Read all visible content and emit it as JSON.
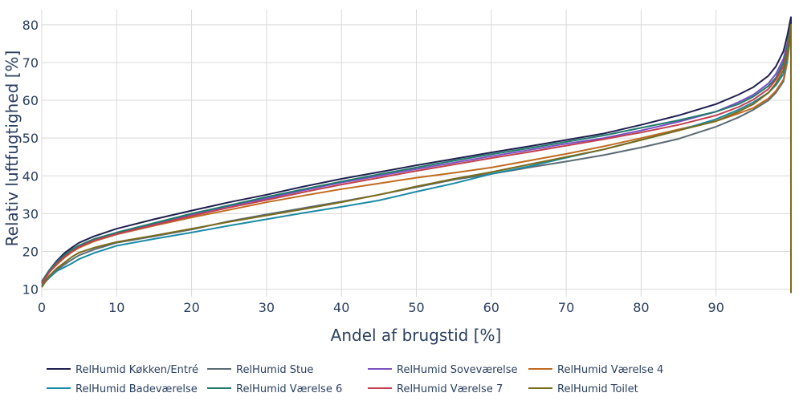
{
  "chart_data": {
    "type": "line",
    "xlabel": "Andel af brugstid [%]",
    "ylabel": "Relativ luftfugtighed [%]",
    "xlim": [
      0,
      100
    ],
    "ylim": [
      8,
      84
    ],
    "xticks": [
      0,
      10,
      20,
      30,
      40,
      50,
      60,
      70,
      80,
      90
    ],
    "yticks": [
      10,
      20,
      30,
      40,
      50,
      60,
      70,
      80
    ],
    "grid": true,
    "legend_position": "bottom",
    "series": [
      {
        "name": "RelHumid Køkken/Entré",
        "color": "#1f1f4f",
        "points": [
          [
            0,
            12
          ],
          [
            1,
            15
          ],
          [
            2,
            17.5
          ],
          [
            3,
            19.5
          ],
          [
            4,
            21
          ],
          [
            5,
            22.3
          ],
          [
            7,
            24
          ],
          [
            10,
            26
          ],
          [
            15,
            28.5
          ],
          [
            20,
            30.8
          ],
          [
            25,
            33
          ],
          [
            30,
            35
          ],
          [
            35,
            37.2
          ],
          [
            40,
            39.2
          ],
          [
            45,
            41
          ],
          [
            50,
            42.8
          ],
          [
            55,
            44.5
          ],
          [
            60,
            46.2
          ],
          [
            65,
            47.8
          ],
          [
            70,
            49.5
          ],
          [
            75,
            51.2
          ],
          [
            80,
            53.5
          ],
          [
            85,
            56
          ],
          [
            90,
            59
          ],
          [
            93,
            61.5
          ],
          [
            95,
            63.5
          ],
          [
            97,
            66.5
          ],
          [
            98,
            69
          ],
          [
            99,
            73
          ],
          [
            99.5,
            77
          ],
          [
            100,
            82
          ],
          [
            100,
            9
          ]
        ]
      },
      {
        "name": "RelHumid Stue",
        "color": "#5a6a72",
        "points": [
          [
            0,
            11
          ],
          [
            1,
            13.5
          ],
          [
            2,
            15
          ],
          [
            3,
            16.5
          ],
          [
            4,
            17.8
          ],
          [
            5,
            19
          ],
          [
            7,
            20.5
          ],
          [
            10,
            22.3
          ],
          [
            15,
            24
          ],
          [
            20,
            25.8
          ],
          [
            25,
            28
          ],
          [
            30,
            29.8
          ],
          [
            35,
            31.5
          ],
          [
            40,
            33.2
          ],
          [
            45,
            35
          ],
          [
            50,
            37
          ],
          [
            55,
            39
          ],
          [
            60,
            40.5
          ],
          [
            65,
            42.2
          ],
          [
            70,
            43.8
          ],
          [
            75,
            45.5
          ],
          [
            80,
            47.5
          ],
          [
            85,
            49.8
          ],
          [
            90,
            53
          ],
          [
            93,
            55.5
          ],
          [
            95,
            57.5
          ],
          [
            97,
            60
          ],
          [
            98,
            62
          ],
          [
            99,
            65
          ],
          [
            99.5,
            70
          ],
          [
            100,
            78
          ],
          [
            100,
            9
          ]
        ]
      },
      {
        "name": "RelHumid Soveværelse",
        "color": "#7b4fc4",
        "points": [
          [
            0,
            11.5
          ],
          [
            1,
            14.5
          ],
          [
            2,
            16.8
          ],
          [
            3,
            18.7
          ],
          [
            4,
            20.2
          ],
          [
            5,
            21.3
          ],
          [
            7,
            23
          ],
          [
            10,
            24.8
          ],
          [
            15,
            27.3
          ],
          [
            20,
            29.8
          ],
          [
            25,
            32
          ],
          [
            30,
            34
          ],
          [
            35,
            36.2
          ],
          [
            40,
            38.2
          ],
          [
            45,
            40
          ],
          [
            50,
            41.8
          ],
          [
            55,
            43.5
          ],
          [
            60,
            45.2
          ],
          [
            65,
            46.8
          ],
          [
            70,
            48.5
          ],
          [
            75,
            50
          ],
          [
            80,
            52
          ],
          [
            85,
            54.3
          ],
          [
            90,
            57
          ],
          [
            93,
            59.5
          ],
          [
            95,
            61.5
          ],
          [
            97,
            64.5
          ],
          [
            98,
            67
          ],
          [
            99,
            71
          ],
          [
            99.5,
            75
          ],
          [
            100,
            80
          ],
          [
            100,
            9
          ]
        ]
      },
      {
        "name": "RelHumid Værelse 4",
        "color": "#c06a1f",
        "points": [
          [
            0,
            11.5
          ],
          [
            1,
            14.5
          ],
          [
            2,
            16.5
          ],
          [
            3,
            18.3
          ],
          [
            4,
            19.8
          ],
          [
            5,
            21
          ],
          [
            7,
            22.7
          ],
          [
            10,
            24.5
          ],
          [
            15,
            26.8
          ],
          [
            20,
            29
          ],
          [
            25,
            31
          ],
          [
            30,
            33
          ],
          [
            35,
            34.8
          ],
          [
            40,
            36.5
          ],
          [
            45,
            38
          ],
          [
            50,
            39.5
          ],
          [
            55,
            40.8
          ],
          [
            60,
            42.2
          ],
          [
            65,
            44
          ],
          [
            70,
            45.8
          ],
          [
            75,
            47.8
          ],
          [
            80,
            50
          ],
          [
            85,
            52.3
          ],
          [
            90,
            54.5
          ],
          [
            93,
            56.5
          ],
          [
            95,
            58
          ],
          [
            97,
            60.5
          ],
          [
            98,
            62.5
          ],
          [
            99,
            65.5
          ],
          [
            99.5,
            70
          ],
          [
            100,
            79
          ],
          [
            100,
            9
          ]
        ]
      },
      {
        "name": "RelHumid Badeværelse",
        "color": "#1b8aa5",
        "points": [
          [
            0,
            11
          ],
          [
            1,
            13
          ],
          [
            2,
            14.8
          ],
          [
            3,
            15.8
          ],
          [
            4,
            16.8
          ],
          [
            5,
            18
          ],
          [
            7,
            19.6
          ],
          [
            10,
            21.5
          ],
          [
            15,
            23.3
          ],
          [
            20,
            25
          ],
          [
            25,
            26.8
          ],
          [
            30,
            28.5
          ],
          [
            35,
            30.2
          ],
          [
            40,
            31.8
          ],
          [
            45,
            33.5
          ],
          [
            50,
            35.8
          ],
          [
            55,
            38
          ],
          [
            60,
            40.5
          ],
          [
            65,
            42.5
          ],
          [
            70,
            44.8
          ],
          [
            75,
            47
          ],
          [
            80,
            49.5
          ],
          [
            85,
            52
          ],
          [
            90,
            55
          ],
          [
            93,
            57.5
          ],
          [
            95,
            59.5
          ],
          [
            97,
            62
          ],
          [
            98,
            64
          ],
          [
            99,
            67
          ],
          [
            99.5,
            71
          ],
          [
            100,
            79
          ],
          [
            100,
            9
          ]
        ]
      },
      {
        "name": "RelHumid Værelse 6",
        "color": "#1f7a6c",
        "points": [
          [
            0,
            12
          ],
          [
            1,
            15
          ],
          [
            2,
            17.2
          ],
          [
            3,
            19
          ],
          [
            4,
            20.5
          ],
          [
            5,
            21.6
          ],
          [
            7,
            23.3
          ],
          [
            10,
            25
          ],
          [
            15,
            27.5
          ],
          [
            20,
            30
          ],
          [
            25,
            32.2
          ],
          [
            30,
            34.4
          ],
          [
            35,
            36.5
          ],
          [
            40,
            38.5
          ],
          [
            45,
            40.4
          ],
          [
            50,
            42.2
          ],
          [
            55,
            44
          ],
          [
            60,
            45.7
          ],
          [
            65,
            47.3
          ],
          [
            70,
            49
          ],
          [
            75,
            50.7
          ],
          [
            80,
            52.7
          ],
          [
            85,
            54.7
          ],
          [
            90,
            57
          ],
          [
            93,
            59
          ],
          [
            95,
            61
          ],
          [
            97,
            63.8
          ],
          [
            98,
            66
          ],
          [
            99,
            70
          ],
          [
            99.5,
            74
          ],
          [
            100,
            80
          ],
          [
            100,
            9
          ]
        ]
      },
      {
        "name": "RelHumid Værelse 7",
        "color": "#c04050",
        "points": [
          [
            0,
            11.5
          ],
          [
            1,
            14.5
          ],
          [
            2,
            16.7
          ],
          [
            3,
            18.5
          ],
          [
            4,
            20
          ],
          [
            5,
            21.2
          ],
          [
            7,
            22.9
          ],
          [
            10,
            24.6
          ],
          [
            15,
            27
          ],
          [
            20,
            29.4
          ],
          [
            25,
            31.6
          ],
          [
            30,
            33.6
          ],
          [
            35,
            35.7
          ],
          [
            40,
            37.7
          ],
          [
            45,
            39.5
          ],
          [
            50,
            41.3
          ],
          [
            55,
            43
          ],
          [
            60,
            44.7
          ],
          [
            65,
            46.3
          ],
          [
            70,
            48
          ],
          [
            75,
            49.7
          ],
          [
            80,
            51.5
          ],
          [
            85,
            53.5
          ],
          [
            90,
            56
          ],
          [
            93,
            58.2
          ],
          [
            95,
            60.2
          ],
          [
            97,
            63
          ],
          [
            98,
            65.5
          ],
          [
            99,
            69
          ],
          [
            99.5,
            73
          ],
          [
            100,
            79
          ],
          [
            100,
            9
          ]
        ]
      },
      {
        "name": "RelHumid Toilet",
        "color": "#7a6a1a",
        "points": [
          [
            0,
            10.5
          ],
          [
            1,
            13.5
          ],
          [
            2,
            15.5
          ],
          [
            3,
            17
          ],
          [
            4,
            18.5
          ],
          [
            5,
            19.7
          ],
          [
            7,
            21
          ],
          [
            10,
            22.5
          ],
          [
            15,
            24.2
          ],
          [
            20,
            26
          ],
          [
            25,
            27.8
          ],
          [
            30,
            29.5
          ],
          [
            35,
            31.2
          ],
          [
            40,
            33
          ],
          [
            45,
            35
          ],
          [
            50,
            37.2
          ],
          [
            55,
            39.2
          ],
          [
            60,
            41
          ],
          [
            65,
            43
          ],
          [
            70,
            45
          ],
          [
            75,
            47
          ],
          [
            80,
            49.5
          ],
          [
            85,
            52
          ],
          [
            90,
            54.5
          ],
          [
            93,
            57
          ],
          [
            95,
            59
          ],
          [
            97,
            62
          ],
          [
            98,
            64.5
          ],
          [
            99,
            68
          ],
          [
            99.5,
            72
          ],
          [
            100,
            80
          ],
          [
            100,
            9
          ]
        ]
      }
    ]
  }
}
